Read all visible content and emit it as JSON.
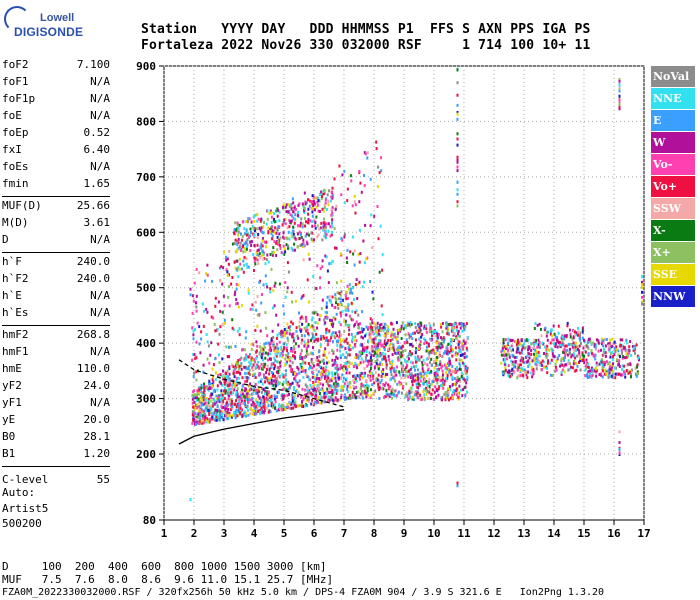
{
  "logo": {
    "top": "Lowell",
    "main": "DIGISONDE"
  },
  "header": {
    "line1": "Station   YYYY DAY   DDD HHMMSS P1  FFS S AXN PPS IGA PS",
    "line2": "Fortaleza 2022 Nov26 330 032000 RSF     1 714 100 10+ 11"
  },
  "params": {
    "group1": [
      {
        "k": "foF2",
        "v": "7.100"
      },
      {
        "k": "foF1",
        "v": "N/A"
      },
      {
        "k": "foF1p",
        "v": "N/A"
      },
      {
        "k": "foE",
        "v": "N/A"
      },
      {
        "k": "foEp",
        "v": "0.52"
      },
      {
        "k": "fxI",
        "v": "6.40"
      },
      {
        "k": "foEs",
        "v": "N/A"
      },
      {
        "k": "fmin",
        "v": "1.65"
      }
    ],
    "group2": [
      {
        "k": "MUF(D)",
        "v": "25.66"
      },
      {
        "k": "M(D)",
        "v": "3.61"
      },
      {
        "k": "D",
        "v": "N/A"
      }
    ],
    "group3": [
      {
        "k": "h`F",
        "v": "240.0"
      },
      {
        "k": "h`F2",
        "v": "240.0"
      },
      {
        "k": "h`E",
        "v": "N/A"
      },
      {
        "k": "h`Es",
        "v": "N/A"
      }
    ],
    "group4": [
      {
        "k": "hmF2",
        "v": "268.8"
      },
      {
        "k": "hmF1",
        "v": "N/A"
      },
      {
        "k": "hmE",
        "v": "110.0"
      },
      {
        "k": "yF2",
        "v": "24.0"
      },
      {
        "k": "yF1",
        "v": "N/A"
      },
      {
        "k": "yE",
        "v": "20.0"
      },
      {
        "k": "B0",
        "v": "28.1"
      },
      {
        "k": "B1",
        "v": "1.20"
      }
    ],
    "clevel": {
      "k": "C-level",
      "v": "55"
    }
  },
  "auto": {
    "label": "Auto:",
    "engine": "Artist5",
    "version": "500200"
  },
  "legend": [
    {
      "label": "NoVal",
      "color": "#8c8c8c"
    },
    {
      "label": "NNE",
      "color": "#33e0f0"
    },
    {
      "label": "E",
      "color": "#3aa0ff"
    },
    {
      "label": "W",
      "color": "#b0109a"
    },
    {
      "label": "Vo-",
      "color": "#ff40b0"
    },
    {
      "label": "Vo+",
      "color": "#ee1040"
    },
    {
      "label": "SSW",
      "color": "#f5a8a8"
    },
    {
      "label": "X-",
      "color": "#0a7a12"
    },
    {
      "label": "X+",
      "color": "#8cc060"
    },
    {
      "label": "SSE",
      "color": "#e6d800"
    },
    {
      "label": "NNW",
      "color": "#1a20c8"
    }
  ],
  "chart_data": {
    "type": "scatter",
    "xlabel": "",
    "ylabel": "",
    "xlim": [
      1,
      17
    ],
    "ylim": [
      80,
      900
    ],
    "xticks": [
      "1",
      "2",
      "3",
      "4",
      "5",
      "6",
      "7",
      "8",
      "9",
      "10",
      "11",
      "12",
      "13",
      "14",
      "15",
      "16",
      "17"
    ],
    "yticks": [
      "80",
      "200",
      "300",
      "400",
      "500",
      "600",
      "700",
      "800",
      "900"
    ],
    "ytick_values": [
      80,
      200,
      300,
      400,
      500,
      600,
      700,
      800,
      900
    ],
    "traces": [
      {
        "name": "virtual-height-trace",
        "x": [
          1.5,
          2,
          3,
          4,
          5,
          6,
          7
        ],
        "y": [
          218,
          232,
          245,
          255,
          265,
          272,
          280
        ]
      },
      {
        "name": "F2-profile",
        "x": [
          1.5,
          2,
          3,
          4,
          5,
          6,
          7
        ],
        "y": [
          370,
          352,
          335,
          322,
          315,
          300,
          285
        ]
      }
    ]
  },
  "footer": {
    "line1": "D     100  200  400  600  800 1000 1500 3000 [km]",
    "line2": "MUF   7.5  7.6  8.0  8.6  9.6 11.0 15.1 25.7 [MHz]",
    "line3": "FZA0M_2022330032000.RSF / 320fx256h 50 kHz 5.0 km / DPS-4 FZA0M 904 / 3.9 S 321.6 E   Ion2Png 1.3.20"
  }
}
